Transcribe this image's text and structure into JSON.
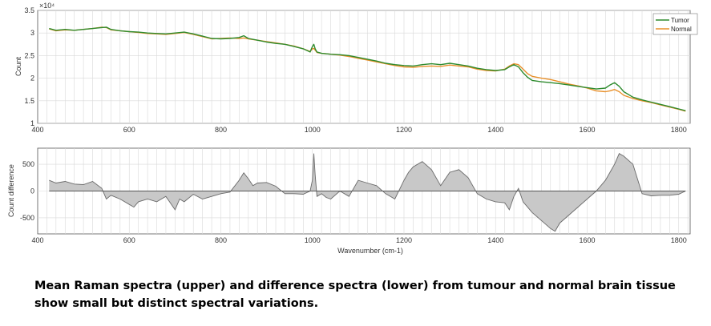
{
  "caption": "Mean Raman spectra (upper) and difference spectra (lower) from tumour and normal brain tissue show small but distinct spectral variations.",
  "colors": {
    "tumor": "#2e8b2e",
    "normal": "#e8902a",
    "difference_fill": "#c8c8c8",
    "difference_line": "#6a6a6a",
    "grid": "#d9d9d9"
  },
  "chart_data": [
    {
      "type": "line",
      "xlim": [
        400,
        1825
      ],
      "ylim": [
        1,
        3.5
      ],
      "y_multiplier": "×10⁴",
      "xticks": [
        "400",
        "600",
        "800",
        "1000",
        "1200",
        "1400",
        "1600",
        "1800"
      ],
      "yticks": [
        "1",
        "1.5",
        "2",
        "2.5",
        "3",
        "3.5"
      ],
      "ylabel": "Count",
      "xlabel": "",
      "grid": true,
      "legend": "top-right",
      "x": [
        425,
        440,
        460,
        480,
        500,
        520,
        540,
        550,
        560,
        580,
        600,
        620,
        640,
        660,
        680,
        700,
        720,
        740,
        760,
        780,
        800,
        820,
        840,
        850,
        860,
        880,
        900,
        920,
        940,
        960,
        980,
        995,
        1000,
        1003,
        1006,
        1010,
        1020,
        1040,
        1060,
        1080,
        1100,
        1120,
        1140,
        1160,
        1180,
        1200,
        1220,
        1240,
        1260,
        1280,
        1300,
        1320,
        1340,
        1360,
        1380,
        1400,
        1420,
        1430,
        1440,
        1450,
        1460,
        1470,
        1480,
        1500,
        1520,
        1540,
        1560,
        1580,
        1600,
        1620,
        1640,
        1650,
        1660,
        1670,
        1680,
        1700,
        1720,
        1740,
        1760,
        1780,
        1800,
        1815
      ],
      "series": [
        {
          "name": "Tumor",
          "values": [
            3.1,
            3.06,
            3.08,
            3.06,
            3.08,
            3.1,
            3.12,
            3.13,
            3.08,
            3.05,
            3.03,
            3.02,
            3.0,
            2.99,
            2.98,
            3.0,
            3.02,
            2.98,
            2.93,
            2.88,
            2.87,
            2.88,
            2.9,
            2.94,
            2.88,
            2.84,
            2.8,
            2.77,
            2.75,
            2.7,
            2.65,
            2.58,
            2.7,
            2.75,
            2.65,
            2.58,
            2.55,
            2.53,
            2.52,
            2.5,
            2.46,
            2.42,
            2.38,
            2.33,
            2.3,
            2.28,
            2.27,
            2.3,
            2.32,
            2.3,
            2.33,
            2.3,
            2.27,
            2.22,
            2.19,
            2.17,
            2.19,
            2.25,
            2.3,
            2.25,
            2.12,
            2.02,
            1.95,
            1.92,
            1.9,
            1.88,
            1.85,
            1.82,
            1.79,
            1.76,
            1.78,
            1.85,
            1.9,
            1.82,
            1.7,
            1.58,
            1.52,
            1.47,
            1.42,
            1.37,
            1.32,
            1.28
          ]
        },
        {
          "name": "Normal",
          "values": [
            3.09,
            3.05,
            3.07,
            3.06,
            3.08,
            3.1,
            3.13,
            3.12,
            3.07,
            3.05,
            3.03,
            3.01,
            2.99,
            2.98,
            2.97,
            2.99,
            3.01,
            2.97,
            2.92,
            2.87,
            2.88,
            2.89,
            2.88,
            2.89,
            2.87,
            2.84,
            2.81,
            2.78,
            2.75,
            2.71,
            2.65,
            2.59,
            2.65,
            2.66,
            2.62,
            2.57,
            2.55,
            2.53,
            2.51,
            2.48,
            2.44,
            2.4,
            2.36,
            2.32,
            2.28,
            2.25,
            2.24,
            2.26,
            2.27,
            2.26,
            2.29,
            2.27,
            2.25,
            2.2,
            2.17,
            2.16,
            2.2,
            2.27,
            2.32,
            2.3,
            2.2,
            2.1,
            2.04,
            2.0,
            1.97,
            1.92,
            1.87,
            1.83,
            1.78,
            1.72,
            1.7,
            1.72,
            1.75,
            1.7,
            1.62,
            1.55,
            1.5,
            1.46,
            1.41,
            1.36,
            1.31,
            1.27
          ]
        }
      ]
    },
    {
      "type": "area",
      "xlim": [
        400,
        1825
      ],
      "ylim": [
        -800,
        800
      ],
      "xticks": [
        "400",
        "600",
        "800",
        "1000",
        "1200",
        "1400",
        "1600",
        "1800"
      ],
      "yticks": [
        "500",
        "0",
        "-500"
      ],
      "ylabel": "Count difference",
      "xlabel": "Wavenumber (cm-1)",
      "grid": true,
      "x": [
        425,
        440,
        460,
        480,
        500,
        520,
        540,
        550,
        560,
        580,
        600,
        610,
        620,
        640,
        660,
        680,
        700,
        710,
        720,
        740,
        760,
        780,
        800,
        820,
        840,
        850,
        860,
        870,
        880,
        900,
        920,
        940,
        960,
        980,
        995,
        1000,
        1003,
        1006,
        1010,
        1020,
        1030,
        1040,
        1060,
        1080,
        1100,
        1120,
        1140,
        1160,
        1180,
        1200,
        1210,
        1220,
        1240,
        1260,
        1280,
        1300,
        1320,
        1340,
        1360,
        1380,
        1400,
        1420,
        1430,
        1440,
        1450,
        1460,
        1470,
        1480,
        1500,
        1520,
        1530,
        1540,
        1560,
        1580,
        1600,
        1620,
        1640,
        1650,
        1660,
        1670,
        1680,
        1700,
        1720,
        1740,
        1760,
        1780,
        1800,
        1815
      ],
      "series": [
        {
          "name": "",
          "values": [
            200,
            150,
            180,
            130,
            120,
            180,
            50,
            -150,
            -80,
            -150,
            -250,
            -300,
            -200,
            -150,
            -200,
            -100,
            -350,
            -150,
            -200,
            -60,
            -150,
            -100,
            -50,
            -20,
            200,
            340,
            230,
            100,
            150,
            160,
            90,
            -50,
            -50,
            -60,
            0,
            200,
            700,
            300,
            -100,
            -50,
            -120,
            -150,
            0,
            -100,
            200,
            150,
            100,
            -50,
            -150,
            200,
            350,
            450,
            550,
            400,
            100,
            350,
            400,
            250,
            -50,
            -150,
            -200,
            -220,
            -350,
            -100,
            50,
            -200,
            -300,
            -400,
            -550,
            -700,
            -750,
            -600,
            -450,
            -300,
            -150,
            0,
            200,
            350,
            500,
            700,
            650,
            500,
            -50,
            -90,
            -80,
            -80,
            -60,
            0
          ]
        }
      ]
    }
  ]
}
